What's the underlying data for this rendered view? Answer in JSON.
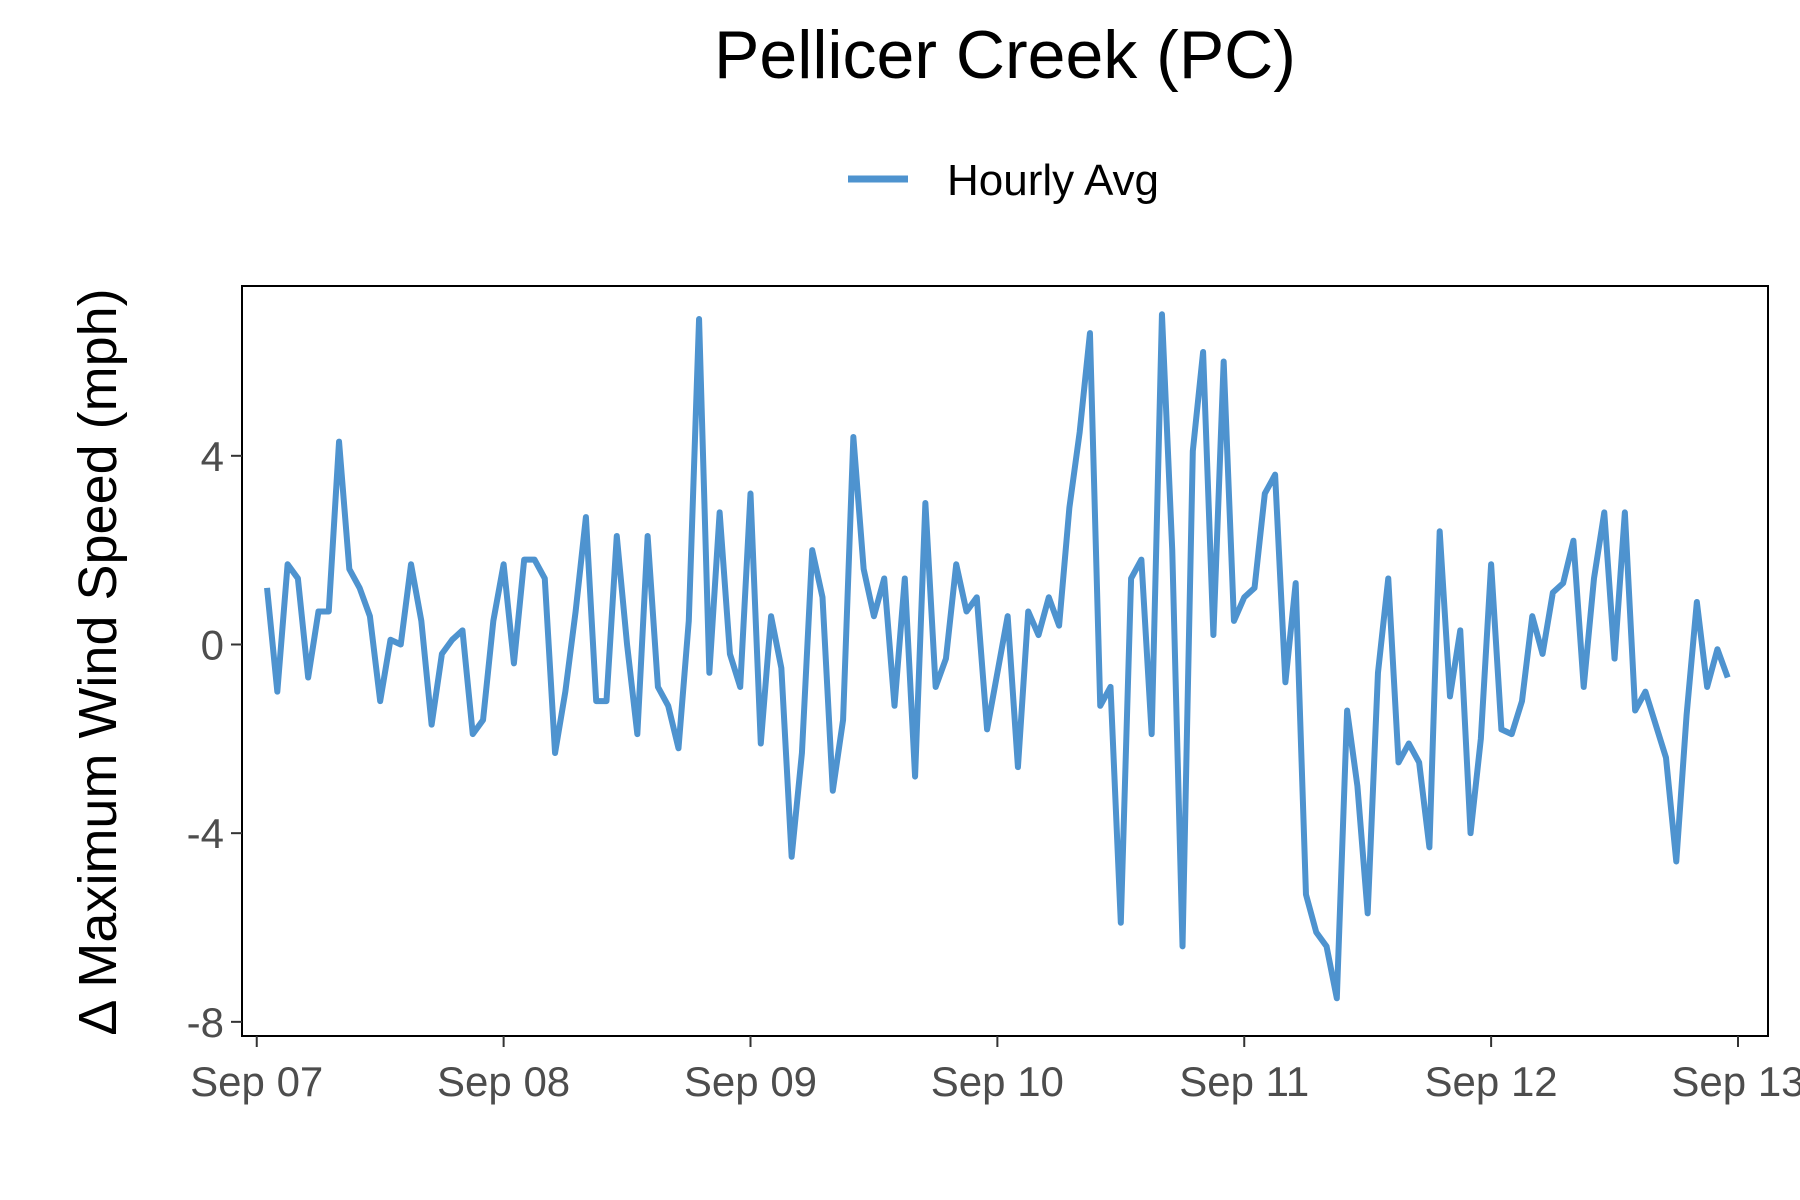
{
  "chart_data": {
    "type": "line",
    "title": "Pellicer Creek (PC)",
    "xlabel": "",
    "ylabel": "Δ Maximum Wind Speed (mph)",
    "legend": {
      "position": "top",
      "entries": [
        "Hourly Avg"
      ]
    },
    "colors": {
      "series": "#4e93cf",
      "axis_text": "#4d4d4d",
      "text": "#000000",
      "background": "#ffffff"
    },
    "grid": false,
    "x_axis": {
      "kind": "date",
      "range": [
        "2023-09-06T22:34",
        "2023-09-13T02:55"
      ],
      "ticks": [
        {
          "value": "2023-09-07",
          "label": "Sep 07"
        },
        {
          "value": "2023-09-08",
          "label": "Sep 08"
        },
        {
          "value": "2023-09-09",
          "label": "Sep 09"
        },
        {
          "value": "2023-09-10",
          "label": "Sep 10"
        },
        {
          "value": "2023-09-11",
          "label": "Sep 11"
        },
        {
          "value": "2023-09-12",
          "label": "Sep 12"
        },
        {
          "value": "2023-09-13",
          "label": "Sep 13"
        }
      ]
    },
    "y_axis": {
      "range": [
        -8.3,
        7.6
      ],
      "ticks": [
        {
          "value": -8,
          "label": "-8"
        },
        {
          "value": -4,
          "label": "-4"
        },
        {
          "value": 0,
          "label": "0"
        },
        {
          "value": 4,
          "label": "4"
        }
      ]
    },
    "series": [
      {
        "name": "Hourly Avg",
        "points": [
          {
            "x": "2023-09-07T01:00",
            "y": 1.2
          },
          {
            "x": "2023-09-07T02:00",
            "y": -1.0
          },
          {
            "x": "2023-09-07T03:00",
            "y": 1.7
          },
          {
            "x": "2023-09-07T04:00",
            "y": 1.4
          },
          {
            "x": "2023-09-07T05:00",
            "y": -0.7
          },
          {
            "x": "2023-09-07T06:00",
            "y": 0.7
          },
          {
            "x": "2023-09-07T07:00",
            "y": 0.7
          },
          {
            "x": "2023-09-07T08:00",
            "y": 4.3
          },
          {
            "x": "2023-09-07T09:00",
            "y": 1.6
          },
          {
            "x": "2023-09-07T10:00",
            "y": 1.2
          },
          {
            "x": "2023-09-07T11:00",
            "y": 0.6
          },
          {
            "x": "2023-09-07T12:00",
            "y": -1.2
          },
          {
            "x": "2023-09-07T13:00",
            "y": 0.1
          },
          {
            "x": "2023-09-07T14:00",
            "y": 0.0
          },
          {
            "x": "2023-09-07T15:00",
            "y": 1.7
          },
          {
            "x": "2023-09-07T16:00",
            "y": 0.5
          },
          {
            "x": "2023-09-07T17:00",
            "y": -1.7
          },
          {
            "x": "2023-09-07T18:00",
            "y": -0.2
          },
          {
            "x": "2023-09-07T19:00",
            "y": 0.1
          },
          {
            "x": "2023-09-07T20:00",
            "y": 0.3
          },
          {
            "x": "2023-09-07T21:00",
            "y": -1.9
          },
          {
            "x": "2023-09-07T22:00",
            "y": -1.6
          },
          {
            "x": "2023-09-07T23:00",
            "y": 0.5
          },
          {
            "x": "2023-09-08T00:00",
            "y": 1.7
          },
          {
            "x": "2023-09-08T01:00",
            "y": -0.4
          },
          {
            "x": "2023-09-08T02:00",
            "y": 1.8
          },
          {
            "x": "2023-09-08T03:00",
            "y": 1.8
          },
          {
            "x": "2023-09-08T04:00",
            "y": 1.4
          },
          {
            "x": "2023-09-08T05:00",
            "y": -2.3
          },
          {
            "x": "2023-09-08T06:00",
            "y": -1.0
          },
          {
            "x": "2023-09-08T07:00",
            "y": 0.7
          },
          {
            "x": "2023-09-08T08:00",
            "y": 2.7
          },
          {
            "x": "2023-09-08T09:00",
            "y": -1.2
          },
          {
            "x": "2023-09-08T10:00",
            "y": -1.2
          },
          {
            "x": "2023-09-08T11:00",
            "y": 2.3
          },
          {
            "x": "2023-09-08T12:00",
            "y": 0.0
          },
          {
            "x": "2023-09-08T13:00",
            "y": -1.9
          },
          {
            "x": "2023-09-08T14:00",
            "y": 2.3
          },
          {
            "x": "2023-09-08T15:00",
            "y": -0.9
          },
          {
            "x": "2023-09-08T16:00",
            "y": -1.3
          },
          {
            "x": "2023-09-08T17:00",
            "y": -2.2
          },
          {
            "x": "2023-09-08T18:00",
            "y": 0.5
          },
          {
            "x": "2023-09-08T19:00",
            "y": 6.9
          },
          {
            "x": "2023-09-08T20:00",
            "y": -0.6
          },
          {
            "x": "2023-09-08T21:00",
            "y": 2.8
          },
          {
            "x": "2023-09-08T22:00",
            "y": -0.2
          },
          {
            "x": "2023-09-08T23:00",
            "y": -0.9
          },
          {
            "x": "2023-09-09T00:00",
            "y": 3.2
          },
          {
            "x": "2023-09-09T01:00",
            "y": -2.1
          },
          {
            "x": "2023-09-09T02:00",
            "y": 0.6
          },
          {
            "x": "2023-09-09T03:00",
            "y": -0.5
          },
          {
            "x": "2023-09-09T04:00",
            "y": -4.5
          },
          {
            "x": "2023-09-09T05:00",
            "y": -2.3
          },
          {
            "x": "2023-09-09T06:00",
            "y": 2.0
          },
          {
            "x": "2023-09-09T07:00",
            "y": 1.0
          },
          {
            "x": "2023-09-09T08:00",
            "y": -3.1
          },
          {
            "x": "2023-09-09T09:00",
            "y": -1.6
          },
          {
            "x": "2023-09-09T10:00",
            "y": 4.4
          },
          {
            "x": "2023-09-09T11:00",
            "y": 1.6
          },
          {
            "x": "2023-09-09T12:00",
            "y": 0.6
          },
          {
            "x": "2023-09-09T13:00",
            "y": 1.4
          },
          {
            "x": "2023-09-09T14:00",
            "y": -1.3
          },
          {
            "x": "2023-09-09T15:00",
            "y": 1.4
          },
          {
            "x": "2023-09-09T16:00",
            "y": -2.8
          },
          {
            "x": "2023-09-09T17:00",
            "y": 3.0
          },
          {
            "x": "2023-09-09T18:00",
            "y": -0.9
          },
          {
            "x": "2023-09-09T19:00",
            "y": -0.3
          },
          {
            "x": "2023-09-09T20:00",
            "y": 1.7
          },
          {
            "x": "2023-09-09T21:00",
            "y": 0.7
          },
          {
            "x": "2023-09-09T22:00",
            "y": 1.0
          },
          {
            "x": "2023-09-09T23:00",
            "y": -1.8
          },
          {
            "x": "2023-09-10T00:00",
            "y": -0.6
          },
          {
            "x": "2023-09-10T01:00",
            "y": 0.6
          },
          {
            "x": "2023-09-10T02:00",
            "y": -2.6
          },
          {
            "x": "2023-09-10T03:00",
            "y": 0.7
          },
          {
            "x": "2023-09-10T04:00",
            "y": 0.2
          },
          {
            "x": "2023-09-10T05:00",
            "y": 1.0
          },
          {
            "x": "2023-09-10T06:00",
            "y": 0.4
          },
          {
            "x": "2023-09-10T07:00",
            "y": 2.9
          },
          {
            "x": "2023-09-10T08:00",
            "y": 4.5
          },
          {
            "x": "2023-09-10T09:00",
            "y": 6.6
          },
          {
            "x": "2023-09-10T10:00",
            "y": -1.3
          },
          {
            "x": "2023-09-10T11:00",
            "y": -0.9
          },
          {
            "x": "2023-09-10T12:00",
            "y": -5.9
          },
          {
            "x": "2023-09-10T13:00",
            "y": 1.4
          },
          {
            "x": "2023-09-10T14:00",
            "y": 1.8
          },
          {
            "x": "2023-09-10T15:00",
            "y": -1.9
          },
          {
            "x": "2023-09-10T16:00",
            "y": 7.0
          },
          {
            "x": "2023-09-10T17:00",
            "y": 2.0
          },
          {
            "x": "2023-09-10T18:00",
            "y": -6.4
          },
          {
            "x": "2023-09-10T19:00",
            "y": 4.1
          },
          {
            "x": "2023-09-10T20:00",
            "y": 6.2
          },
          {
            "x": "2023-09-10T21:00",
            "y": 0.2
          },
          {
            "x": "2023-09-10T22:00",
            "y": 6.0
          },
          {
            "x": "2023-09-10T23:00",
            "y": 0.5
          },
          {
            "x": "2023-09-11T00:00",
            "y": 1.0
          },
          {
            "x": "2023-09-11T01:00",
            "y": 1.2
          },
          {
            "x": "2023-09-11T02:00",
            "y": 3.2
          },
          {
            "x": "2023-09-11T03:00",
            "y": 3.6
          },
          {
            "x": "2023-09-11T04:00",
            "y": -0.8
          },
          {
            "x": "2023-09-11T05:00",
            "y": 1.3
          },
          {
            "x": "2023-09-11T06:00",
            "y": -5.3
          },
          {
            "x": "2023-09-11T07:00",
            "y": -6.1
          },
          {
            "x": "2023-09-11T08:00",
            "y": -6.4
          },
          {
            "x": "2023-09-11T09:00",
            "y": -7.5
          },
          {
            "x": "2023-09-11T10:00",
            "y": -1.4
          },
          {
            "x": "2023-09-11T11:00",
            "y": -3.0
          },
          {
            "x": "2023-09-11T12:00",
            "y": -5.7
          },
          {
            "x": "2023-09-11T13:00",
            "y": -0.6
          },
          {
            "x": "2023-09-11T14:00",
            "y": 1.4
          },
          {
            "x": "2023-09-11T15:00",
            "y": -2.5
          },
          {
            "x": "2023-09-11T16:00",
            "y": -2.1
          },
          {
            "x": "2023-09-11T17:00",
            "y": -2.5
          },
          {
            "x": "2023-09-11T18:00",
            "y": -4.3
          },
          {
            "x": "2023-09-11T19:00",
            "y": 2.4
          },
          {
            "x": "2023-09-11T20:00",
            "y": -1.1
          },
          {
            "x": "2023-09-11T21:00",
            "y": 0.3
          },
          {
            "x": "2023-09-11T22:00",
            "y": -4.0
          },
          {
            "x": "2023-09-11T23:00",
            "y": -2.0
          },
          {
            "x": "2023-09-12T00:00",
            "y": 1.7
          },
          {
            "x": "2023-09-12T01:00",
            "y": -1.8
          },
          {
            "x": "2023-09-12T02:00",
            "y": -1.9
          },
          {
            "x": "2023-09-12T03:00",
            "y": -1.2
          },
          {
            "x": "2023-09-12T04:00",
            "y": 0.6
          },
          {
            "x": "2023-09-12T05:00",
            "y": -0.2
          },
          {
            "x": "2023-09-12T06:00",
            "y": 1.1
          },
          {
            "x": "2023-09-12T07:00",
            "y": 1.3
          },
          {
            "x": "2023-09-12T08:00",
            "y": 2.2
          },
          {
            "x": "2023-09-12T09:00",
            "y": -0.9
          },
          {
            "x": "2023-09-12T10:00",
            "y": 1.4
          },
          {
            "x": "2023-09-12T11:00",
            "y": 2.8
          },
          {
            "x": "2023-09-12T12:00",
            "y": -0.3
          },
          {
            "x": "2023-09-12T13:00",
            "y": 2.8
          },
          {
            "x": "2023-09-12T14:00",
            "y": -1.4
          },
          {
            "x": "2023-09-12T15:00",
            "y": -1.0
          },
          {
            "x": "2023-09-12T16:00",
            "y": -1.7
          },
          {
            "x": "2023-09-12T17:00",
            "y": -2.4
          },
          {
            "x": "2023-09-12T18:00",
            "y": -4.6
          },
          {
            "x": "2023-09-12T19:00",
            "y": -1.5
          },
          {
            "x": "2023-09-12T20:00",
            "y": 0.9
          },
          {
            "x": "2023-09-12T21:00",
            "y": -0.9
          },
          {
            "x": "2023-09-12T22:00",
            "y": -0.1
          },
          {
            "x": "2023-09-12T23:00",
            "y": -0.7
          }
        ]
      }
    ]
  }
}
